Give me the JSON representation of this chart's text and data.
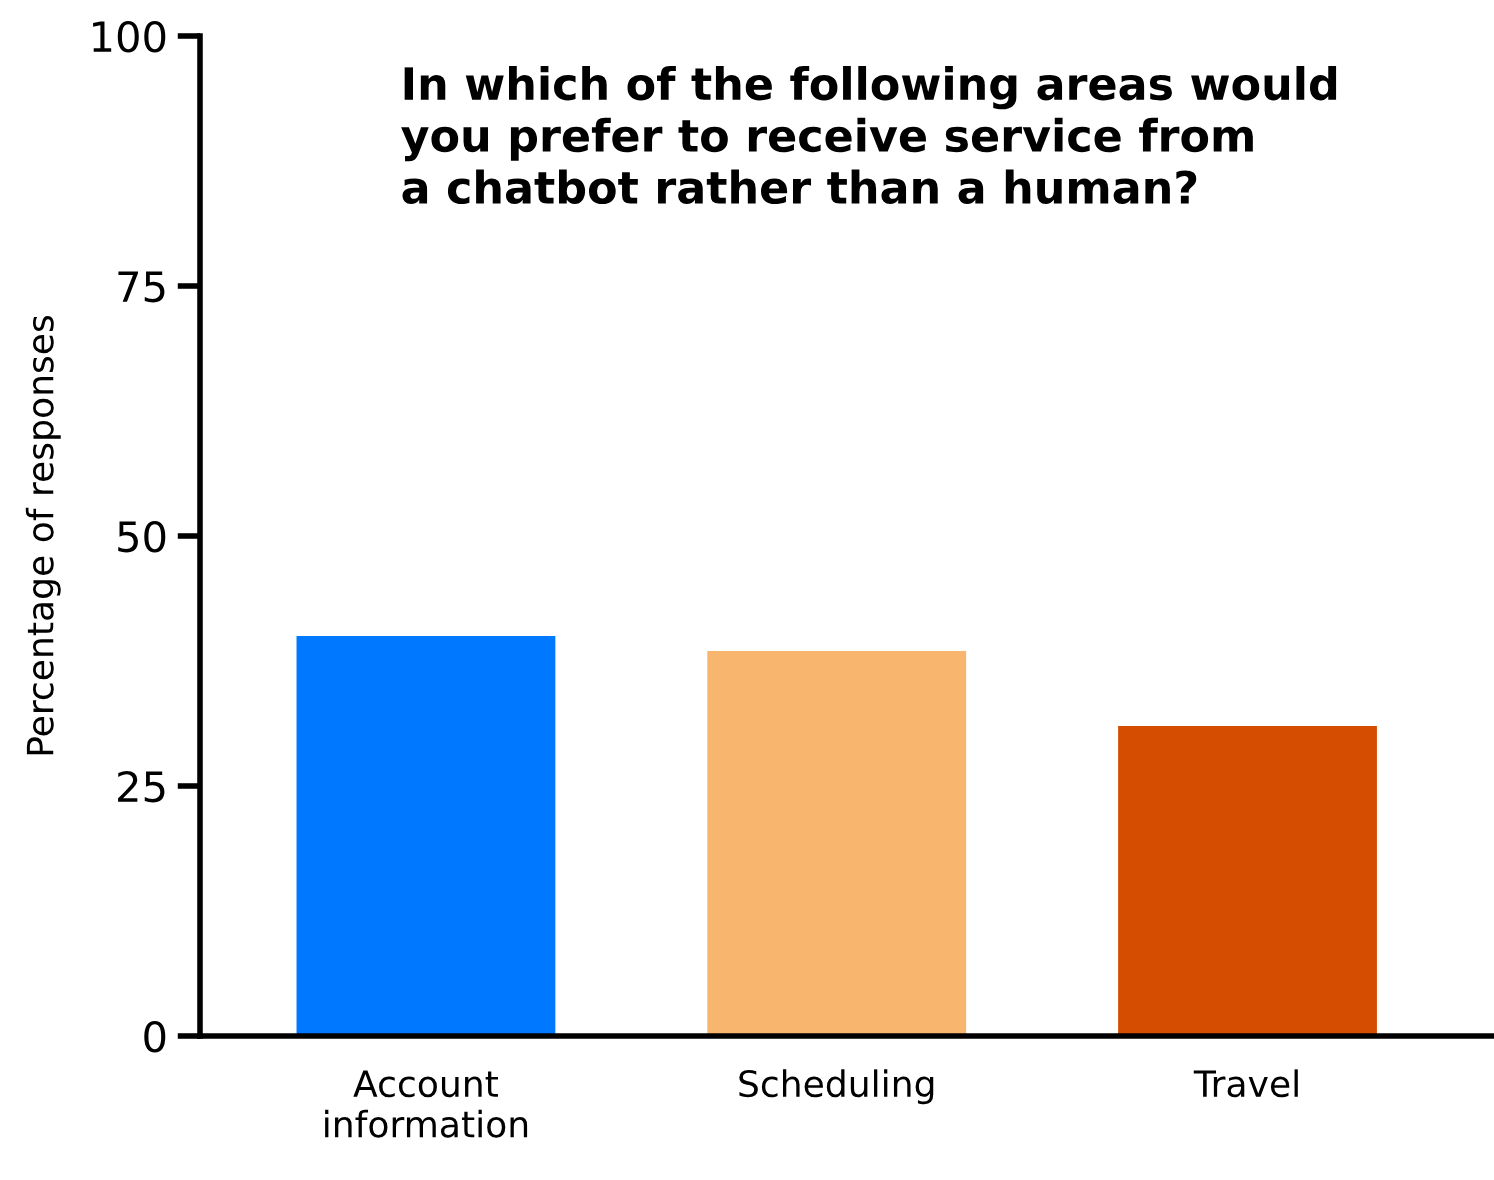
{
  "chart_data": {
    "type": "bar",
    "title": "In which of the following areas would\nyou prefer to receive service from\na chatbot rather than a human?",
    "ylabel": "Percentage of responses",
    "categories": [
      "Account\ninformation",
      "Scheduling",
      "Travel"
    ],
    "values": [
      40,
      38.5,
      31
    ],
    "colors": [
      "#0078ff",
      "#f8b56d",
      "#d54d00"
    ],
    "ylim": [
      0,
      100
    ],
    "yticks": [
      0,
      25,
      50,
      75,
      100
    ],
    "grid": false,
    "legend": false
  }
}
